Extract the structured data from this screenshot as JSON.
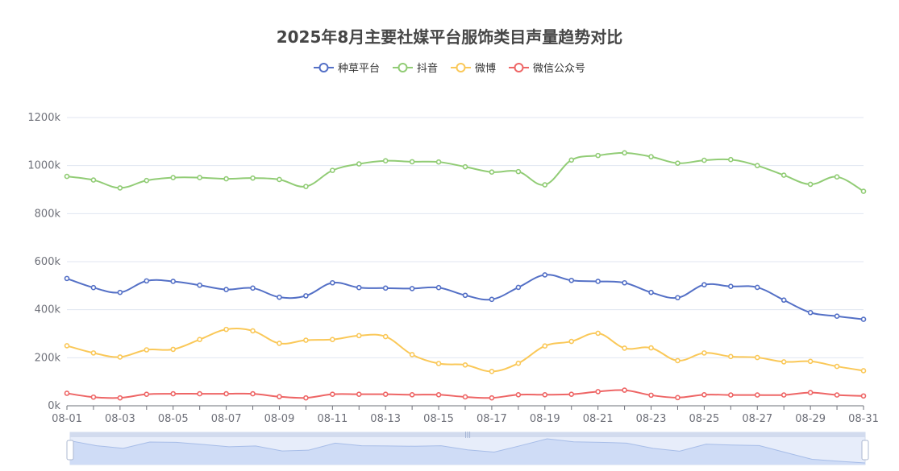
{
  "chart_data": {
    "type": "line",
    "title": "2025年8月主要社媒平台服饰类目声量趋势对比",
    "xlabel": "",
    "ylabel": "",
    "ylim": [
      0,
      1200000
    ],
    "y_ticks": [
      "0k",
      "200k",
      "400k",
      "600k",
      "800k",
      "1000k",
      "1200k"
    ],
    "x_tick_labels": [
      "08-01",
      "08-03",
      "08-05",
      "08-07",
      "08-09",
      "08-11",
      "08-13",
      "08-15",
      "08-17",
      "08-19",
      "08-21",
      "08-23",
      "08-25",
      "08-27",
      "08-29",
      "08-31"
    ],
    "legend_position": "top-center",
    "grid": true,
    "x": [
      "08-01",
      "08-02",
      "08-03",
      "08-04",
      "08-05",
      "08-06",
      "08-07",
      "08-08",
      "08-09",
      "08-10",
      "08-11",
      "08-12",
      "08-13",
      "08-14",
      "08-15",
      "08-16",
      "08-17",
      "08-18",
      "08-19",
      "08-20",
      "08-21",
      "08-22",
      "08-23",
      "08-24",
      "08-25",
      "08-26",
      "08-27",
      "08-28",
      "08-29",
      "08-30",
      "08-31"
    ],
    "series": [
      {
        "name": "种草平台",
        "color": "#5470c6",
        "values": [
          530000,
          492000,
          472000,
          520000,
          518000,
          502000,
          484000,
          490000,
          452000,
          458000,
          512000,
          492000,
          490000,
          488000,
          492000,
          460000,
          443000,
          493000,
          545000,
          522000,
          518000,
          512000,
          472000,
          450000,
          504000,
          497000,
          493000,
          440000,
          388000,
          373000,
          360000
        ]
      },
      {
        "name": "抖音",
        "color": "#91cc75",
        "values": [
          955000,
          940000,
          907000,
          938000,
          950000,
          950000,
          945000,
          948000,
          942000,
          913000,
          980000,
          1007000,
          1020000,
          1016000,
          1015000,
          995000,
          973000,
          975000,
          920000,
          1023000,
          1042000,
          1053000,
          1037000,
          1010000,
          1022000,
          1025000,
          1000000,
          960000,
          922000,
          953000,
          893000
        ]
      },
      {
        "name": "微博",
        "color": "#fac858",
        "values": [
          250000,
          220000,
          203000,
          233000,
          235000,
          276000,
          318000,
          312000,
          260000,
          273000,
          276000,
          292000,
          288000,
          213000,
          176000,
          170000,
          143000,
          177000,
          249000,
          268000,
          302000,
          240000,
          241000,
          188000,
          220000,
          205000,
          201000,
          183000,
          185000,
          164000,
          146000
        ]
      },
      {
        "name": "微信公众号",
        "color": "#ee6666",
        "values": [
          52000,
          36000,
          33000,
          48000,
          50000,
          50000,
          50000,
          50000,
          38000,
          33000,
          48000,
          48000,
          48000,
          46000,
          46000,
          37000,
          33000,
          46000,
          46000,
          48000,
          59000,
          65000,
          44000,
          34000,
          46000,
          45000,
          45000,
          45000,
          55000,
          45000,
          41000
        ]
      }
    ]
  }
}
